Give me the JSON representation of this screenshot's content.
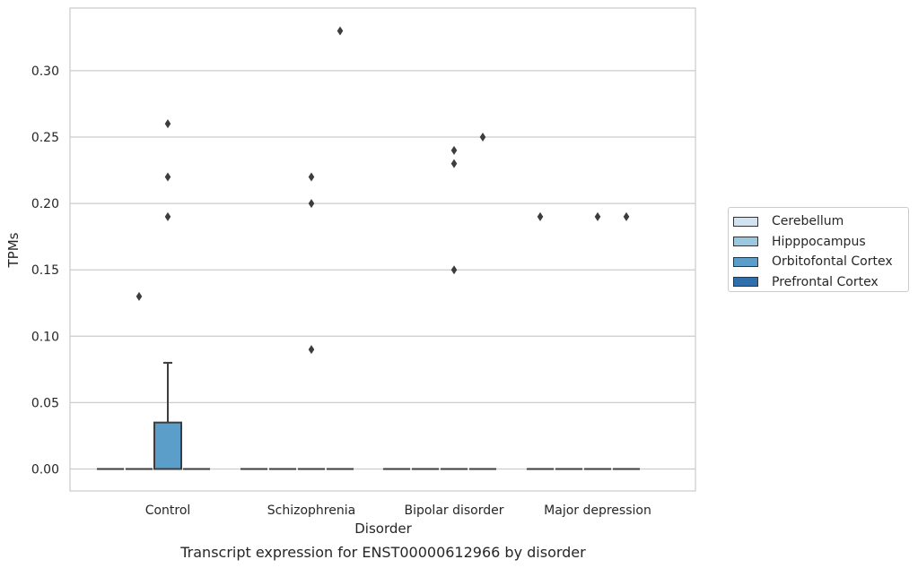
{
  "chart_data": {
    "type": "box",
    "title": "Transcript expression for ENST00000612966 by disorder",
    "xlabel": "Disorder",
    "ylabel": "TPMs",
    "ylim": [
      -0.016,
      0.348
    ],
    "yticks": [
      0.0,
      0.05,
      0.1,
      0.15,
      0.2,
      0.25,
      0.3
    ],
    "ytick_labels": [
      "0.00",
      "0.05",
      "0.10",
      "0.15",
      "0.20",
      "0.25",
      "0.30"
    ],
    "categories": [
      "Control",
      "Schizophrenia",
      "Bipolar disorder",
      "Major depression"
    ],
    "grid": true,
    "legend_position": "right",
    "series": [
      {
        "name": "Cerebellum",
        "color": "#d1e2f2",
        "boxes": [
          {
            "min": 0,
            "q1": 0,
            "median": 0,
            "q3": 0,
            "max": 0,
            "outliers": []
          },
          {
            "min": 0,
            "q1": 0,
            "median": 0,
            "q3": 0,
            "max": 0,
            "outliers": []
          },
          {
            "min": 0,
            "q1": 0,
            "median": 0,
            "q3": 0,
            "max": 0,
            "outliers": []
          },
          {
            "min": 0,
            "q1": 0,
            "median": 0,
            "q3": 0,
            "max": 0,
            "outliers": [
              0.19
            ]
          }
        ]
      },
      {
        "name": "Hipppocampus",
        "color": "#9ac8e0",
        "boxes": [
          {
            "min": 0,
            "q1": 0,
            "median": 0,
            "q3": 0,
            "max": 0,
            "outliers": [
              0.13
            ]
          },
          {
            "min": 0,
            "q1": 0,
            "median": 0,
            "q3": 0,
            "max": 0,
            "outliers": []
          },
          {
            "min": 0,
            "q1": 0,
            "median": 0,
            "q3": 0,
            "max": 0,
            "outliers": []
          },
          {
            "min": 0,
            "q1": 0,
            "median": 0,
            "q3": 0,
            "max": 0,
            "outliers": []
          }
        ]
      },
      {
        "name": "Orbitofontal Cortex",
        "color": "#5a9ec9",
        "boxes": [
          {
            "min": 0,
            "q1": 0,
            "median": 0,
            "q3": 0,
            "max": 0,
            "outliers": [
              0.22
            ]
          },
          {
            "min": 0,
            "q1": 0,
            "median": 0,
            "q3": 0,
            "max": 0,
            "outliers": [
              0.09,
              0.2,
              0.22
            ]
          },
          {
            "min": 0,
            "q1": 0,
            "median": 0,
            "q3": 0,
            "max": 0,
            "outliers": [
              0.23,
              0.24
            ]
          },
          {
            "min": 0,
            "q1": 0,
            "median": 0,
            "q3": 0,
            "max": 0,
            "outliers": [
              0.19
            ]
          }
        ]
      },
      {
        "name": "Prefrontal Cortex",
        "color": "#2e6fac",
        "boxes": [
          {
            "min": 0,
            "q1": 0,
            "median": 0,
            "q3": 0,
            "max": 0,
            "outliers": []
          },
          {
            "min": 0,
            "q1": 0,
            "median": 0,
            "q3": 0,
            "max": 0,
            "outliers": [
              0.33
            ]
          },
          {
            "min": 0,
            "q1": 0,
            "median": 0,
            "q3": 0,
            "max": 0,
            "outliers": [
              0.25
            ]
          },
          {
            "min": 0,
            "q1": 0,
            "median": 0,
            "q3": 0,
            "max": 0,
            "outliers": [
              0.19
            ]
          }
        ]
      },
      {
        "name": "",
        "color": "#5a9ec9",
        "boxes": [
          {
            "min": 0,
            "q1": 0,
            "median": 0,
            "q3": 0.035,
            "max": 0.08,
            "outliers": [
              0.19,
              0.26
            ]
          },
          {
            "min": 0,
            "q1": 0,
            "median": 0,
            "q3": 0,
            "max": 0,
            "outliers": []
          },
          {
            "min": 0,
            "q1": 0,
            "median": 0,
            "q3": 0,
            "max": 0,
            "outliers": [
              0.15
            ]
          },
          {
            "min": 0,
            "q1": 0,
            "median": 0,
            "q3": 0,
            "max": 0,
            "outliers": []
          }
        ]
      }
    ]
  }
}
